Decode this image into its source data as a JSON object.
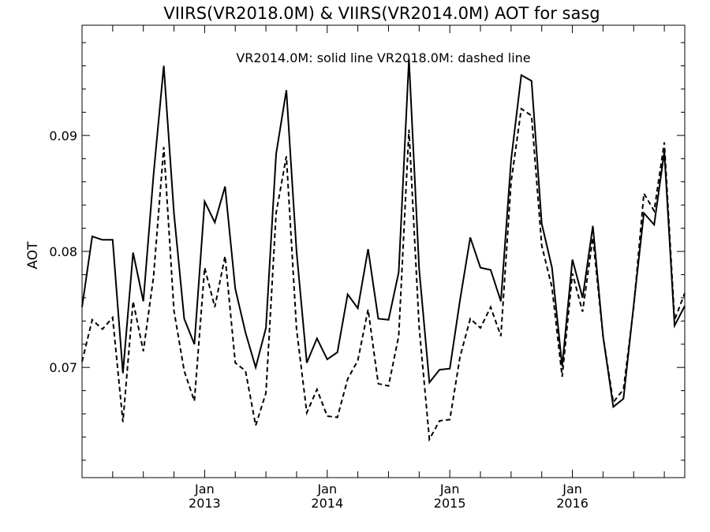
{
  "chart_data": {
    "type": "line",
    "title": "VIIRS(VR2018.0M) & VIIRS(VR2014.0M)  AOT for sasg",
    "annotation": "VR2014.0M: solid line   VR2018.0M: dashed line",
    "xlabel": "",
    "ylabel": "AOT",
    "ylim": [
      0.0605,
      0.0995
    ],
    "y_ticks": [
      0.07,
      0.08,
      0.09
    ],
    "y_tick_labels": [
      "0.07",
      "0.08",
      "0.09"
    ],
    "x_range": [
      "2012-01",
      "2016-12"
    ],
    "x_tick_labels": [
      {
        "month": "Jan",
        "year": "2013",
        "at": "2013-01"
      },
      {
        "month": "Jan",
        "year": "2014",
        "at": "2014-01"
      },
      {
        "month": "Jan",
        "year": "2015",
        "at": "2015-01"
      },
      {
        "month": "Jan",
        "year": "2016",
        "at": "2016-01"
      }
    ],
    "grid": false,
    "x": [
      "2012-01",
      "2012-02",
      "2012-03",
      "2012-04",
      "2012-05",
      "2012-06",
      "2012-07",
      "2012-08",
      "2012-09",
      "2012-10",
      "2012-11",
      "2012-12",
      "2013-01",
      "2013-02",
      "2013-03",
      "2013-04",
      "2013-05",
      "2013-06",
      "2013-07",
      "2013-08",
      "2013-09",
      "2013-10",
      "2013-11",
      "2013-12",
      "2014-01",
      "2014-02",
      "2014-03",
      "2014-04",
      "2014-05",
      "2014-06",
      "2014-07",
      "2014-08",
      "2014-09",
      "2014-10",
      "2014-11",
      "2014-12",
      "2015-01",
      "2015-02",
      "2015-03",
      "2015-04",
      "2015-05",
      "2015-06",
      "2015-07",
      "2015-08",
      "2015-09",
      "2015-10",
      "2015-11",
      "2015-12",
      "2016-01",
      "2016-02",
      "2016-03",
      "2016-04",
      "2016-05",
      "2016-06",
      "2016-07",
      "2016-08",
      "2016-09",
      "2016-10",
      "2016-11",
      "2016-12"
    ],
    "series": [
      {
        "name": "VR2014.0M",
        "style": "solid",
        "color": "#000000",
        "values": [
          0.0752,
          0.0813,
          0.081,
          0.081,
          0.0695,
          0.0799,
          0.0757,
          0.0866,
          0.096,
          0.0833,
          0.0742,
          0.072,
          0.0843,
          0.0825,
          0.0856,
          0.0768,
          0.073,
          0.07,
          0.0734,
          0.0884,
          0.0939,
          0.08,
          0.0704,
          0.0725,
          0.0707,
          0.0713,
          0.0763,
          0.0751,
          0.0802,
          0.0742,
          0.0741,
          0.0782,
          0.0966,
          0.0785,
          0.0687,
          0.0698,
          0.0699,
          0.0758,
          0.0812,
          0.0786,
          0.0784,
          0.0757,
          0.0879,
          0.0952,
          0.0947,
          0.0824,
          0.0786,
          0.0701,
          0.0793,
          0.076,
          0.0822,
          0.0727,
          0.0666,
          0.0673,
          0.0754,
          0.0833,
          0.0823,
          0.0886,
          0.0736,
          0.0753
        ]
      },
      {
        "name": "VR2018.0M",
        "style": "dashed",
        "color": "#000000",
        "values": [
          0.0705,
          0.0741,
          0.0733,
          0.0743,
          0.0653,
          0.0757,
          0.0714,
          0.0778,
          0.089,
          0.0749,
          0.0697,
          0.0671,
          0.0786,
          0.0752,
          0.0796,
          0.0704,
          0.0697,
          0.065,
          0.0678,
          0.0833,
          0.0882,
          0.0733,
          0.0661,
          0.0681,
          0.0658,
          0.0657,
          0.069,
          0.0706,
          0.075,
          0.0686,
          0.0684,
          0.0727,
          0.0905,
          0.0735,
          0.0638,
          0.0654,
          0.0655,
          0.0709,
          0.0742,
          0.0734,
          0.0752,
          0.0727,
          0.086,
          0.0923,
          0.0917,
          0.0805,
          0.0769,
          0.0692,
          0.0781,
          0.0748,
          0.0812,
          0.0727,
          0.067,
          0.0681,
          0.0752,
          0.085,
          0.0835,
          0.0894,
          0.0741,
          0.0764
        ]
      }
    ]
  }
}
